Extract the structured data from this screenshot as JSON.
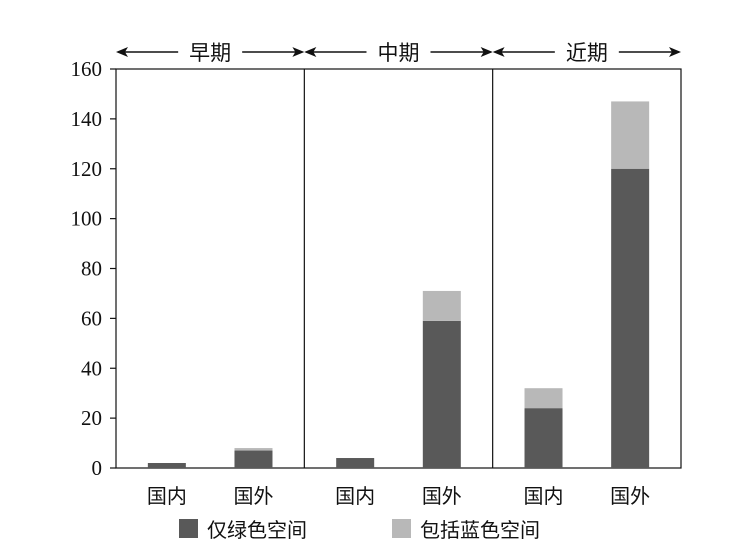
{
  "chart_data": {
    "type": "bar",
    "stacked": true,
    "title": "",
    "xlabel": "",
    "ylabel": "",
    "ylim": [
      0,
      160
    ],
    "yticks": [
      0,
      20,
      40,
      60,
      80,
      100,
      120,
      140,
      160
    ],
    "grid": false,
    "legend_position": "bottom",
    "periods": [
      "早期",
      "中期",
      "近期"
    ],
    "categories": [
      "国内",
      "国外",
      "国内",
      "国外",
      "国内",
      "国外"
    ],
    "series": [
      {
        "name": "仅绿色空间",
        "color": "#595959",
        "values": [
          2,
          7,
          4,
          59,
          24,
          120
        ]
      },
      {
        "name": "包括蓝色空间",
        "color": "#b8b8b8",
        "values": [
          0,
          1,
          0,
          12,
          8,
          27
        ]
      }
    ]
  }
}
